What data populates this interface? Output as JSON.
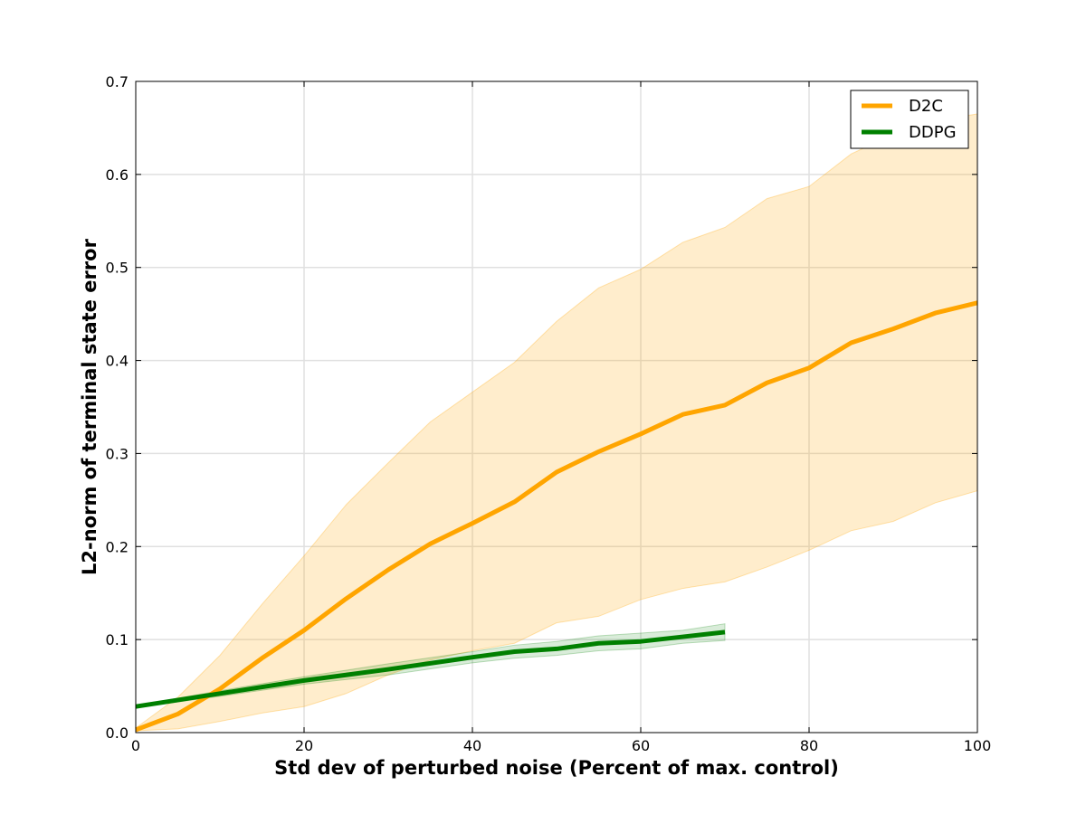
{
  "chart_data": {
    "type": "line",
    "title": "",
    "xlabel": "Std dev of perturbed noise (Percent of max. control)",
    "ylabel": "L2-norm of terminal state error",
    "xlim": [
      0,
      100
    ],
    "ylim": [
      0,
      0.7
    ],
    "x_ticks": [
      0,
      20,
      40,
      60,
      80,
      100
    ],
    "x_tick_labels": [
      "0",
      "20",
      "40",
      "60",
      "80",
      "100"
    ],
    "y_ticks": [
      0,
      0.1,
      0.2,
      0.3,
      0.4,
      0.5,
      0.6,
      0.7
    ],
    "y_tick_labels": [
      "0.0",
      "0.1",
      "0.2",
      "0.3",
      "0.4",
      "0.5",
      "0.6",
      "0.7"
    ],
    "grid": true,
    "legend": {
      "position": "top-right"
    },
    "series": [
      {
        "name": "D2C",
        "color": "#ffa500",
        "band_color": "#ffa500",
        "x": [
          0,
          5,
          10,
          15,
          20,
          25,
          30,
          35,
          40,
          45,
          50,
          55,
          60,
          65,
          70,
          75,
          80,
          85,
          90,
          95,
          100
        ],
        "y": [
          0.003,
          0.02,
          0.047,
          0.08,
          0.11,
          0.144,
          0.175,
          0.203,
          0.225,
          0.248,
          0.28,
          0.302,
          0.321,
          0.342,
          0.352,
          0.376,
          0.392,
          0.419,
          0.434,
          0.451,
          0.462
        ],
        "lower": [
          0.002,
          0.004,
          0.012,
          0.021,
          0.028,
          0.042,
          0.062,
          0.078,
          0.088,
          0.096,
          0.118,
          0.125,
          0.143,
          0.155,
          0.162,
          0.178,
          0.196,
          0.217,
          0.227,
          0.247,
          0.26
        ],
        "upper": [
          0.005,
          0.038,
          0.083,
          0.138,
          0.19,
          0.245,
          0.29,
          0.334,
          0.366,
          0.398,
          0.442,
          0.478,
          0.498,
          0.527,
          0.543,
          0.574,
          0.587,
          0.622,
          0.643,
          0.658,
          0.665
        ]
      },
      {
        "name": "DDPG",
        "color": "#008000",
        "band_color": "#008000",
        "x": [
          0,
          10,
          20,
          30,
          40,
          45,
          50,
          55,
          60,
          65,
          70
        ],
        "y": [
          0.028,
          0.042,
          0.056,
          0.068,
          0.081,
          0.087,
          0.09,
          0.096,
          0.098,
          0.103,
          0.108
        ],
        "lower": [
          0.027,
          0.039,
          0.052,
          0.062,
          0.075,
          0.08,
          0.083,
          0.088,
          0.09,
          0.096,
          0.099
        ],
        "upper": [
          0.029,
          0.045,
          0.06,
          0.074,
          0.087,
          0.094,
          0.098,
          0.104,
          0.107,
          0.11,
          0.117
        ]
      }
    ]
  }
}
